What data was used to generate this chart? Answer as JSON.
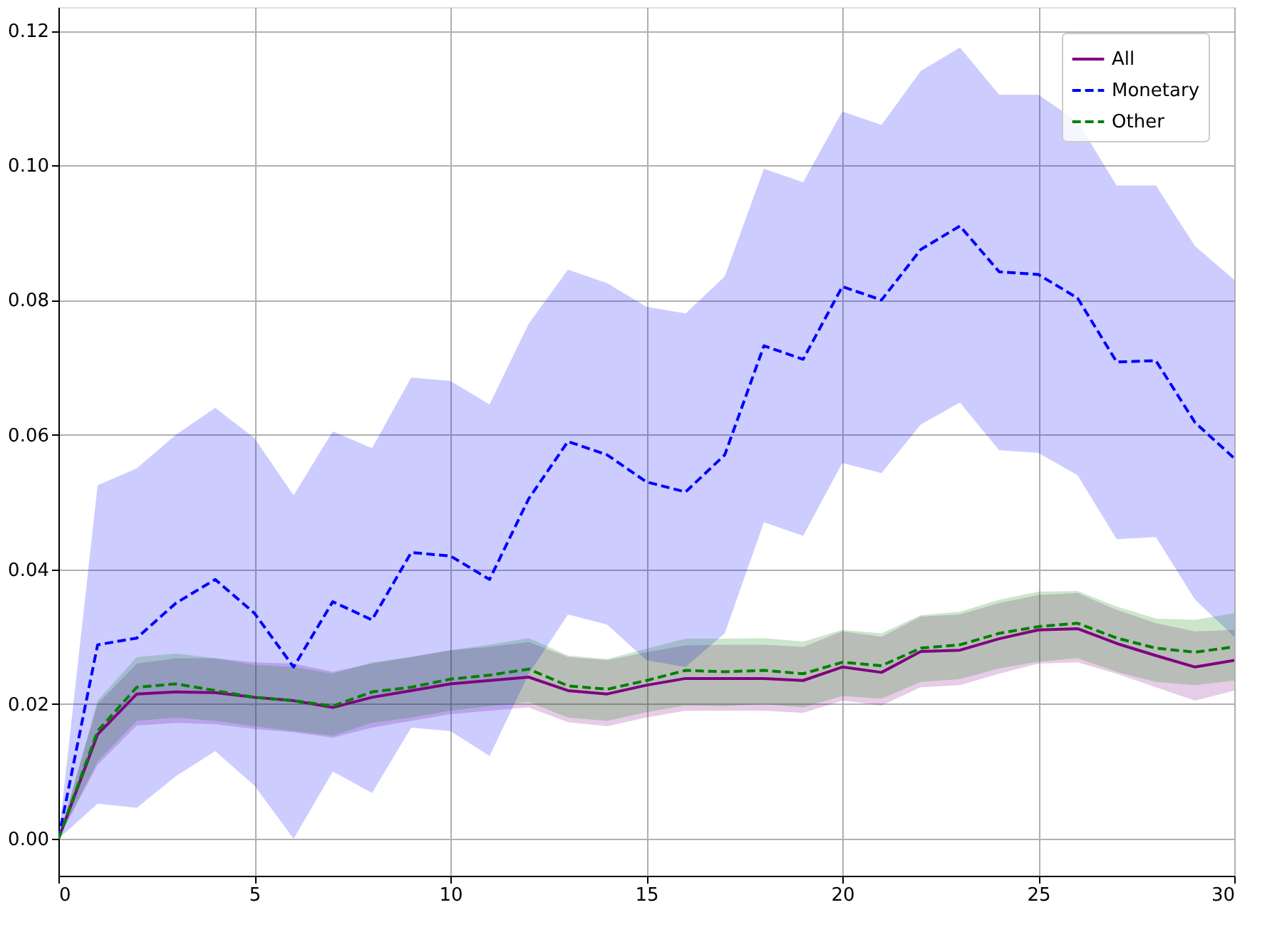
{
  "chart_data": {
    "type": "line",
    "x": [
      0,
      1,
      2,
      3,
      4,
      5,
      6,
      7,
      8,
      9,
      10,
      11,
      12,
      13,
      14,
      15,
      16,
      17,
      18,
      19,
      20,
      21,
      22,
      23,
      24,
      25,
      26,
      27,
      28,
      29,
      30
    ],
    "xlim": [
      0,
      30
    ],
    "xticks": [
      0,
      5,
      10,
      15,
      20,
      25,
      30
    ],
    "ylim": [
      -0.0055,
      0.1235
    ],
    "yticks": [
      {
        "value": 0,
        "label": "0.00"
      },
      {
        "value": 0.02,
        "label": "0.02"
      },
      {
        "value": 0.04,
        "label": "0.04"
      },
      {
        "value": 0.06,
        "label": "0.06"
      },
      {
        "value": 0.08,
        "label": "0.08"
      },
      {
        "value": 0.1,
        "label": "0.10"
      },
      {
        "value": 0.12,
        "label": "0.12"
      }
    ],
    "grid": true,
    "legend": "top right",
    "series": [
      {
        "name": "All",
        "color": "#800080",
        "line_style": "solid",
        "values": [
          0,
          0.0155,
          0.0215,
          0.0218,
          0.0217,
          0.021,
          0.0205,
          0.0195,
          0.021,
          0.022,
          0.023,
          0.0235,
          0.024,
          0.022,
          0.0215,
          0.0228,
          0.0238,
          0.0238,
          0.0238,
          0.0235,
          0.0255,
          0.0247,
          0.0278,
          0.028,
          0.0297,
          0.031,
          0.0312,
          0.029,
          0.0272,
          0.0255,
          0.0265
        ],
        "lower": [
          0,
          0.011,
          0.0168,
          0.0172,
          0.017,
          0.0163,
          0.0158,
          0.015,
          0.0165,
          0.0175,
          0.0185,
          0.019,
          0.0195,
          0.0173,
          0.0167,
          0.018,
          0.019,
          0.019,
          0.019,
          0.0187,
          0.0205,
          0.0198,
          0.0225,
          0.0228,
          0.0245,
          0.026,
          0.0262,
          0.0245,
          0.0225,
          0.0205,
          0.022
        ],
        "upper": [
          0,
          0.02,
          0.026,
          0.0268,
          0.0268,
          0.0262,
          0.026,
          0.0248,
          0.026,
          0.027,
          0.028,
          0.0285,
          0.0292,
          0.027,
          0.0265,
          0.0277,
          0.0287,
          0.0288,
          0.0288,
          0.0285,
          0.0308,
          0.03,
          0.033,
          0.0333,
          0.035,
          0.0362,
          0.0365,
          0.034,
          0.032,
          0.0308,
          0.031
        ]
      },
      {
        "name": "Monetary",
        "color": "#0000ff",
        "line_style": "dashed",
        "values": [
          0,
          0.0288,
          0.0298,
          0.035,
          0.0385,
          0.0335,
          0.0255,
          0.0352,
          0.0325,
          0.0425,
          0.042,
          0.0385,
          0.0505,
          0.059,
          0.057,
          0.053,
          0.0515,
          0.057,
          0.0732,
          0.0712,
          0.082,
          0.08,
          0.0875,
          0.091,
          0.0842,
          0.0838,
          0.0803,
          0.0708,
          0.071,
          0.0618,
          0.0565
        ],
        "lower": [
          0,
          0.0052,
          0.0046,
          0.0093,
          0.013,
          0.0079,
          0,
          0.01,
          0.0068,
          0.0165,
          0.016,
          0.0123,
          0.0245,
          0.0333,
          0.0318,
          0.0265,
          0.0255,
          0.0305,
          0.047,
          0.045,
          0.0558,
          0.0543,
          0.0615,
          0.0648,
          0.0577,
          0.0573,
          0.054,
          0.0445,
          0.0448,
          0.0355,
          0.03
        ],
        "upper": [
          0,
          0.0525,
          0.055,
          0.06,
          0.064,
          0.0595,
          0.051,
          0.0605,
          0.058,
          0.0685,
          0.068,
          0.0645,
          0.0765,
          0.0845,
          0.0825,
          0.079,
          0.078,
          0.0835,
          0.0995,
          0.0975,
          0.108,
          0.106,
          0.114,
          0.1175,
          0.1105,
          0.1105,
          0.1065,
          0.097,
          0.097,
          0.088,
          0.083
        ]
      },
      {
        "name": "Other",
        "color": "#008000",
        "line_style": "dashed",
        "values": [
          0,
          0.016,
          0.0225,
          0.023,
          0.022,
          0.021,
          0.0205,
          0.0197,
          0.0218,
          0.0225,
          0.0237,
          0.0243,
          0.0252,
          0.0227,
          0.0222,
          0.0235,
          0.025,
          0.0248,
          0.025,
          0.0245,
          0.0262,
          0.0257,
          0.0283,
          0.0288,
          0.0305,
          0.0315,
          0.032,
          0.0298,
          0.0283,
          0.0277,
          0.0285
        ],
        "lower": [
          0,
          0.0115,
          0.0175,
          0.018,
          0.0175,
          0.0167,
          0.016,
          0.0153,
          0.0172,
          0.018,
          0.019,
          0.0197,
          0.0203,
          0.018,
          0.0175,
          0.0188,
          0.0198,
          0.0197,
          0.02,
          0.0195,
          0.0212,
          0.0208,
          0.0233,
          0.0237,
          0.0253,
          0.0263,
          0.0268,
          0.0248,
          0.0233,
          0.0228,
          0.0235
        ],
        "upper": [
          0,
          0.0205,
          0.027,
          0.0275,
          0.0268,
          0.0258,
          0.0255,
          0.0245,
          0.0262,
          0.027,
          0.028,
          0.0288,
          0.0298,
          0.0272,
          0.0267,
          0.0282,
          0.0297,
          0.0297,
          0.0298,
          0.0293,
          0.031,
          0.0305,
          0.0332,
          0.0337,
          0.0355,
          0.0367,
          0.0368,
          0.0345,
          0.0327,
          0.0325,
          0.0335
        ]
      }
    ]
  }
}
